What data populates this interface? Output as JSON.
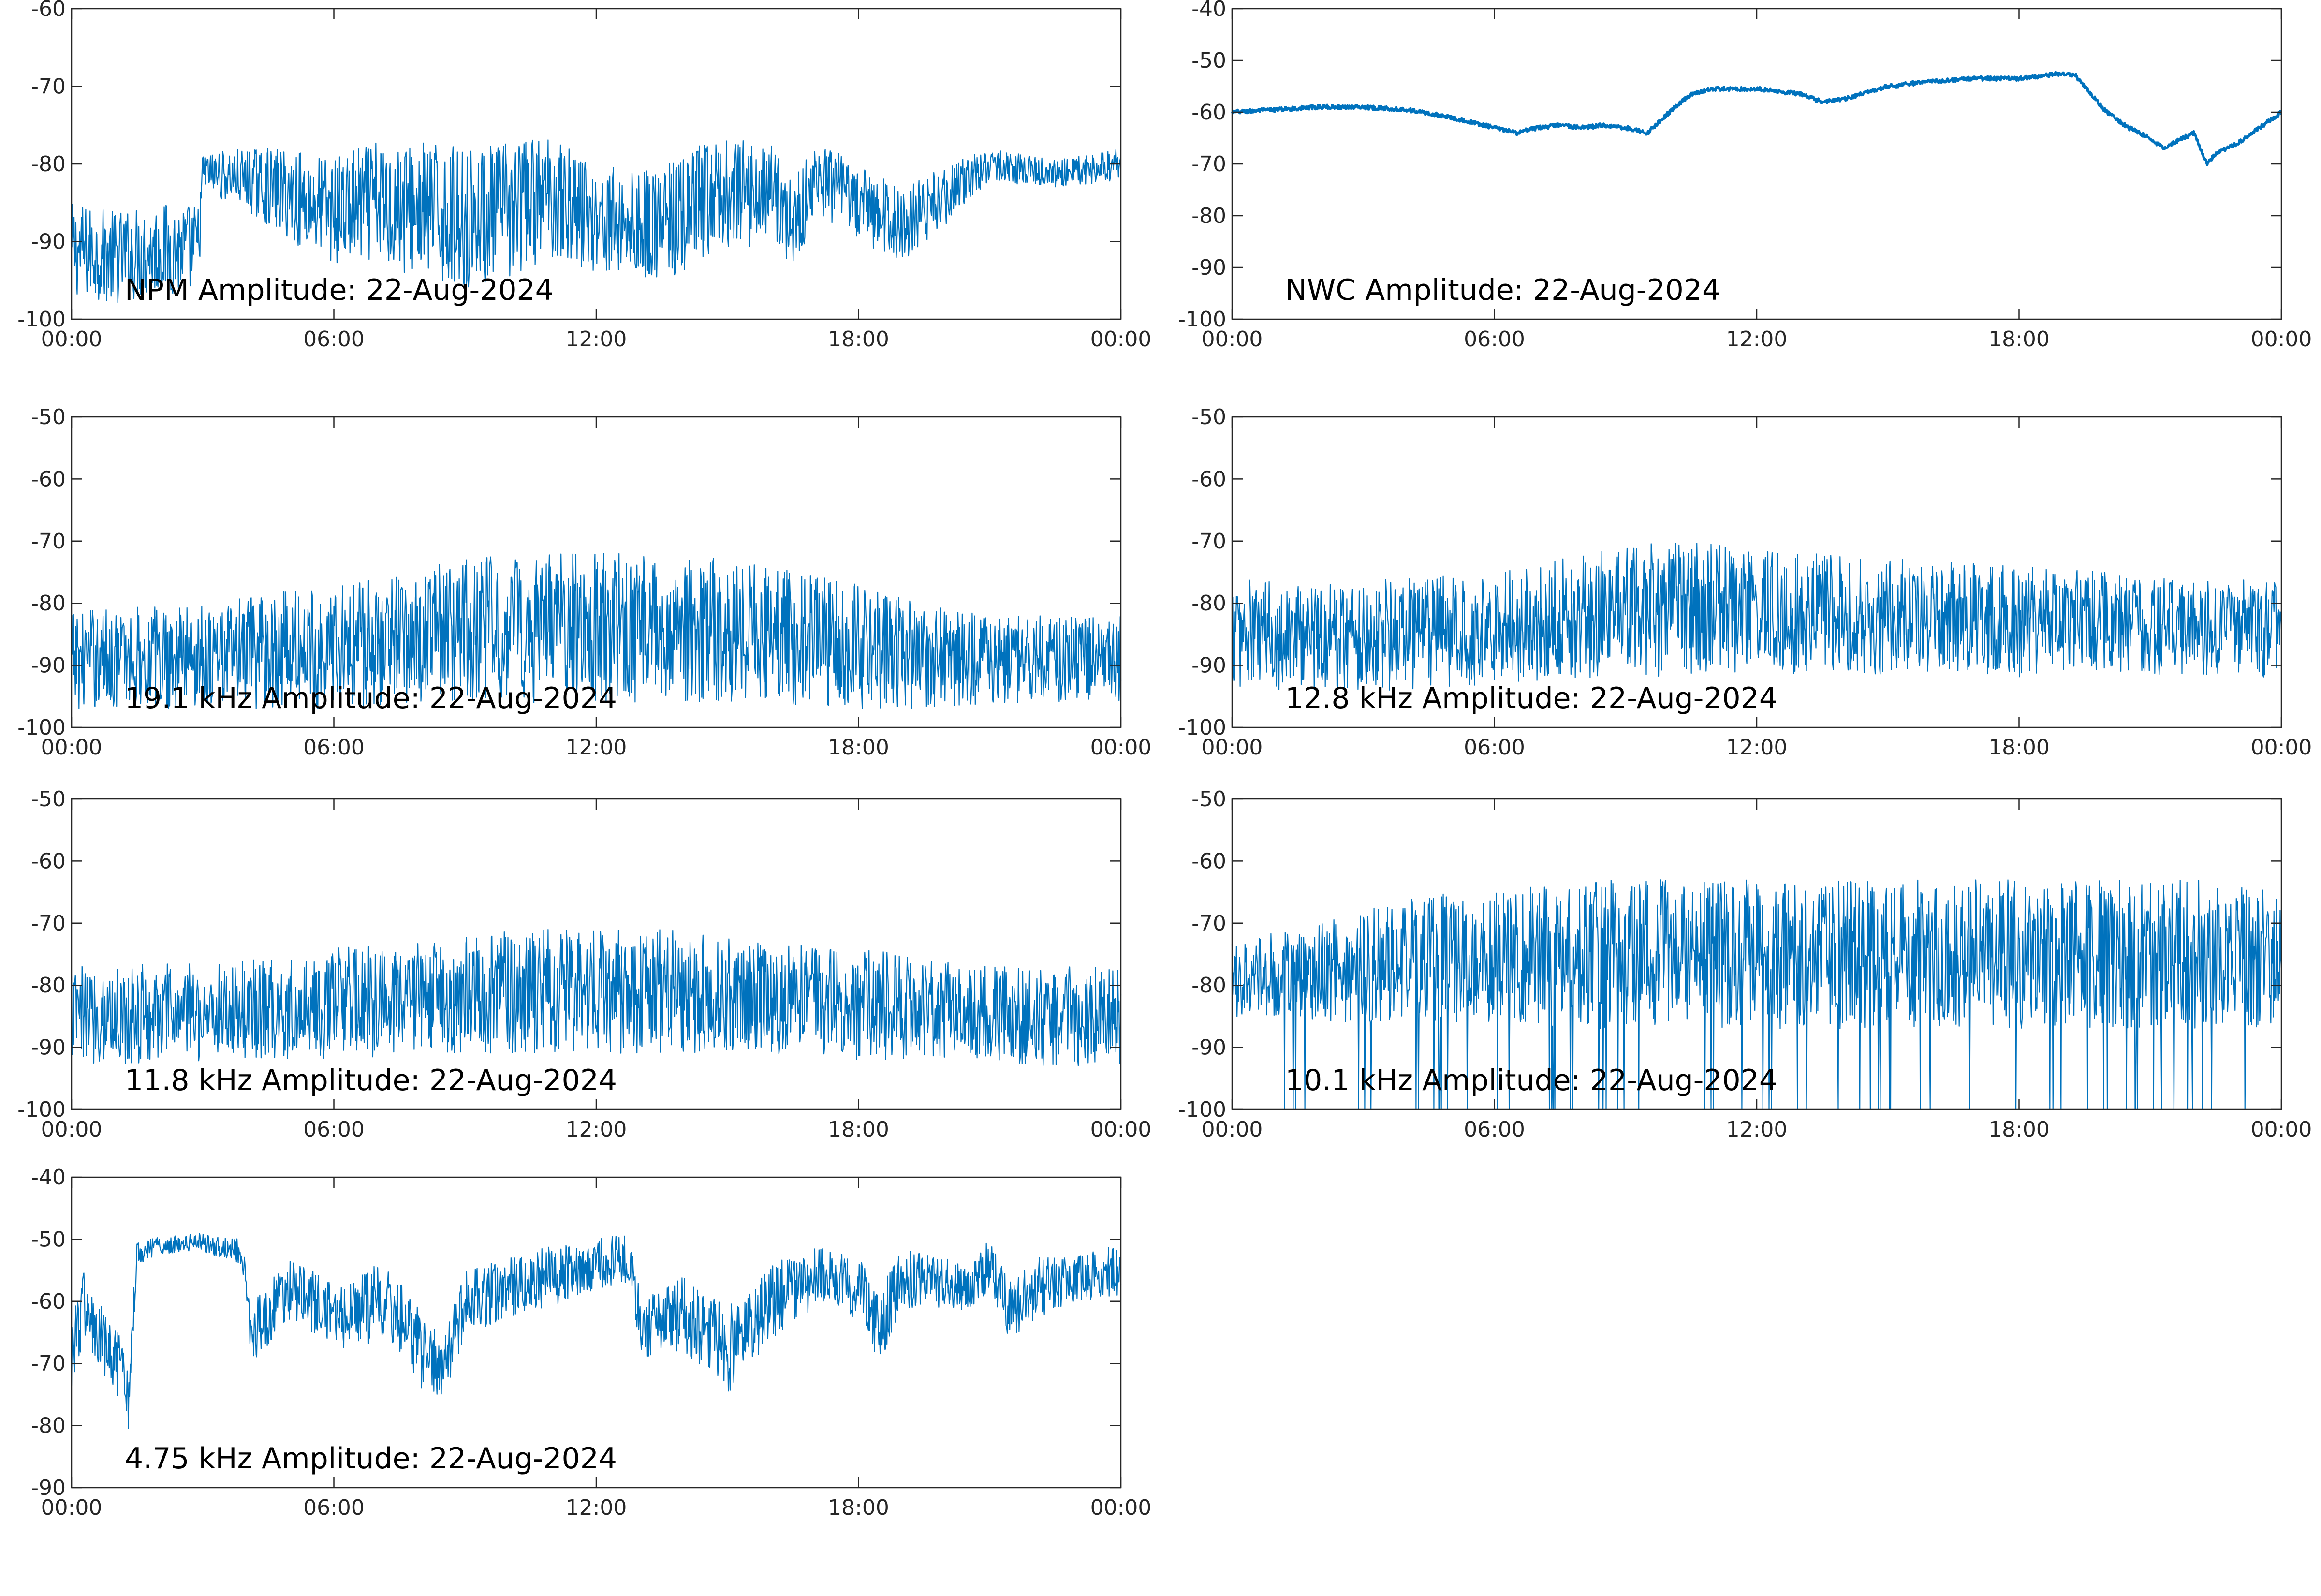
{
  "colors": {
    "series": "#0072BD",
    "axis": "#262626",
    "background": "#ffffff"
  },
  "chart_data": [
    {
      "type": "line",
      "title": "NPM Amplitude: 22-Aug-2024",
      "xticks": [
        "00:00",
        "06:00",
        "12:00",
        "18:00",
        "00:00"
      ],
      "yticks": [
        "-60",
        "-70",
        "-80",
        "-90",
        "-100"
      ],
      "xlim_hours": [
        0,
        24
      ],
      "ylim": [
        -100,
        -60
      ],
      "grid": false,
      "series": [
        {
          "x_hours": [
            0,
            1,
            2,
            2.9,
            3,
            4,
            5,
            6,
            7,
            8,
            9,
            10,
            11,
            12,
            13,
            14,
            14.5,
            15,
            15.5,
            16,
            16.5,
            17,
            18,
            19,
            20,
            21,
            22,
            23,
            24
          ],
          "y": [
            -91,
            -92,
            -91,
            -91,
            -81,
            -82,
            -84,
            -86,
            -85,
            -86,
            -87,
            -86,
            -84,
            -87,
            -88,
            -87,
            -85,
            -84,
            -84,
            -83,
            -88,
            -82,
            -85,
            -88,
            -84,
            -80,
            -81,
            -81,
            -80
          ],
          "noise": [
            6,
            6,
            6,
            6,
            2.5,
            4,
            6,
            7,
            8,
            9,
            9,
            9,
            8,
            7,
            7,
            8,
            8,
            7,
            7,
            6,
            6,
            5,
            5,
            5,
            4,
            2,
            2,
            2,
            2
          ]
        }
      ]
    },
    {
      "type": "line",
      "title": "NWC Amplitude: 22-Aug-2024",
      "xticks": [
        "00:00",
        "06:00",
        "12:00",
        "18:00",
        "00:00"
      ],
      "yticks": [
        "-40",
        "-50",
        "-60",
        "-70",
        "-80",
        "-90",
        "-100"
      ],
      "xlim_hours": [
        0,
        24
      ],
      "ylim": [
        -100,
        -40
      ],
      "grid": false,
      "series": [
        {
          "x_hours": [
            0,
            1,
            2,
            3,
            4,
            5,
            5.5,
            6,
            6.5,
            7,
            7.5,
            8,
            8.5,
            9,
            9.5,
            10,
            10.5,
            11,
            12,
            13,
            13.5,
            14,
            15,
            16,
            17,
            18,
            19,
            19.3,
            20,
            20.5,
            21,
            21.3,
            21.5,
            22,
            22.3,
            22.5,
            23,
            24
          ],
          "y": [
            -60,
            -59.5,
            -59,
            -59,
            -59.5,
            -61,
            -62,
            -63,
            -64,
            -63,
            -62.5,
            -63,
            -62.5,
            -63,
            -64,
            -60,
            -56.5,
            -55.5,
            -55.5,
            -56.5,
            -58,
            -57.5,
            -55,
            -54,
            -53.5,
            -53.5,
            -52.5,
            -53,
            -60,
            -63,
            -65,
            -67,
            -66,
            -64,
            -70,
            -68,
            -66,
            -60
          ],
          "noise": [
            0.4
          ]
        }
      ]
    },
    {
      "type": "line",
      "title": "19.1 kHz Amplitude: 22-Aug-2024",
      "xticks": [
        "00:00",
        "06:00",
        "12:00",
        "18:00",
        "00:00"
      ],
      "yticks": [
        "-50",
        "-60",
        "-70",
        "-80",
        "-90",
        "-100"
      ],
      "xlim_hours": [
        0,
        24
      ],
      "ylim": [
        -100,
        -50
      ],
      "grid": false,
      "series": [
        {
          "x_hours": [
            0,
            4,
            6,
            8,
            10,
            12,
            14,
            16,
            18,
            20,
            22,
            24
          ],
          "y": [
            -89,
            -88,
            -87,
            -85,
            -84,
            -84,
            -84,
            -85,
            -87,
            -89,
            -89,
            -89
          ],
          "noise": [
            8,
            9,
            10,
            11,
            12,
            12,
            12,
            11,
            10,
            8,
            7,
            7
          ]
        }
      ]
    },
    {
      "type": "line",
      "title": "12.8 kHz Amplitude: 22-Aug-2024",
      "xticks": [
        "00:00",
        "06:00",
        "12:00",
        "18:00",
        "00:00"
      ],
      "yticks": [
        "-50",
        "-60",
        "-70",
        "-80",
        "-90",
        "-100"
      ],
      "xlim_hours": [
        0,
        24
      ],
      "ylim": [
        -100,
        -50
      ],
      "grid": false,
      "series": [
        {
          "x_hours": [
            0,
            4,
            6,
            8,
            10,
            12,
            14,
            16,
            18,
            20,
            22,
            24
          ],
          "y": [
            -85,
            -85,
            -84,
            -82,
            -81,
            -81,
            -82,
            -82,
            -83,
            -83,
            -84,
            -84
          ],
          "noise": [
            9,
            9,
            9,
            10,
            11,
            10,
            10,
            9,
            9,
            8,
            8,
            8
          ]
        }
      ]
    },
    {
      "type": "line",
      "title": "11.8 kHz Amplitude: 22-Aug-2024",
      "xticks": [
        "00:00",
        "06:00",
        "12:00",
        "18:00",
        "00:00"
      ],
      "yticks": [
        "-50",
        "-60",
        "-70",
        "-80",
        "-90",
        "-100"
      ],
      "xlim_hours": [
        0,
        24
      ],
      "ylim": [
        -100,
        -50
      ],
      "grid": false,
      "series": [
        {
          "x_hours": [
            0,
            4,
            6,
            8,
            10,
            12,
            14,
            16,
            18,
            20,
            22,
            24
          ],
          "y": [
            -85,
            -84,
            -83,
            -82,
            -81,
            -81,
            -81,
            -82,
            -83,
            -84,
            -85,
            -85
          ],
          "noise": [
            8,
            8,
            9,
            9,
            10,
            10,
            10,
            9,
            9,
            8,
            8,
            8
          ]
        }
      ]
    },
    {
      "type": "line",
      "title": "10.1 kHz Amplitude: 22-Aug-2024",
      "xticks": [
        "00:00",
        "06:00",
        "12:00",
        "18:00",
        "00:00"
      ],
      "yticks": [
        "-50",
        "-60",
        "-70",
        "-80",
        "-90",
        "-100"
      ],
      "xlim_hours": [
        0,
        24
      ],
      "ylim": [
        -100,
        -50
      ],
      "grid": false,
      "series": [
        {
          "x_hours": [
            0,
            2,
            4,
            6,
            8,
            10,
            12,
            14,
            16,
            18,
            20,
            22,
            24
          ],
          "y": [
            -79,
            -78,
            -76,
            -75,
            -75,
            -75,
            -75,
            -75,
            -75,
            -75,
            -75,
            -75,
            -76
          ],
          "noise": [
            6,
            8,
            10,
            11,
            12,
            12,
            12,
            12,
            12,
            12,
            12,
            12,
            11
          ],
          "dropouts_per_hour": 2.5
        }
      ]
    },
    {
      "type": "line",
      "title": "4.75 kHz Amplitude: 22-Aug-2024",
      "xticks": [
        "00:00",
        "06:00",
        "12:00",
        "18:00",
        "00:00"
      ],
      "yticks": [
        "-40",
        "-50",
        "-60",
        "-70",
        "-80",
        "-90"
      ],
      "xlim_hours": [
        0,
        24
      ],
      "ylim": [
        -90,
        -40
      ],
      "grid": false,
      "series": [
        {
          "x_hours": [
            0,
            0.3,
            0.5,
            1,
            1.3,
            1.5,
            2,
            3,
            3.9,
            4.1,
            4.5,
            5,
            6,
            6.5,
            7,
            7.5,
            8,
            8.5,
            9,
            10,
            11,
            12,
            12.8,
            13,
            14,
            15,
            16,
            17,
            18,
            18.5,
            19,
            20,
            20.5,
            21,
            21.5,
            22,
            23,
            24
          ],
          "y": [
            -68,
            -60,
            -65,
            -70,
            -75,
            -52,
            -51,
            -50.5,
            -52,
            -65,
            -62,
            -58,
            -62,
            -62,
            -60,
            -62,
            -68,
            -72,
            -60,
            -58,
            -56,
            -54,
            -53,
            -64,
            -62,
            -68,
            -60,
            -56,
            -58,
            -64,
            -56,
            -57,
            -58,
            -54,
            -62,
            -58,
            -56,
            -55
          ],
          "noise": [
            6,
            6,
            6,
            6,
            6,
            2,
            1.5,
            1.5,
            2,
            5,
            5,
            5,
            5,
            6,
            6,
            6,
            6,
            6,
            5,
            5,
            5,
            4,
            4,
            5,
            6,
            7,
            6,
            5,
            5,
            6,
            5,
            4,
            4,
            4,
            5,
            5,
            4,
            4
          ]
        }
      ]
    }
  ]
}
